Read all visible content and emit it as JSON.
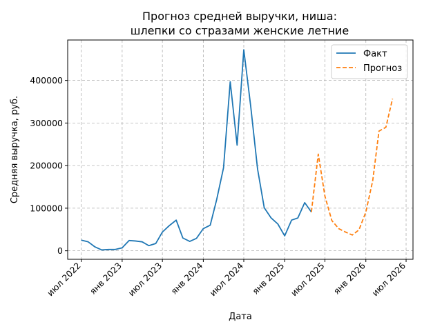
{
  "chart_data": {
    "type": "line",
    "title": [
      "Прогноз средней выручки, ниша:",
      "шлепки со стразами женские летние"
    ],
    "xlabel": "Дата",
    "ylabel": "Средняя выручка, руб.",
    "xlim": [
      "2022-05-01",
      "2026-08-01"
    ],
    "ylim": [
      -20000,
      495000
    ],
    "x_ticks": [
      {
        "date": "2022-07-01",
        "label": "июл 2022"
      },
      {
        "date": "2023-01-01",
        "label": "янв 2023"
      },
      {
        "date": "2023-07-01",
        "label": "июл 2023"
      },
      {
        "date": "2024-01-01",
        "label": "янв 2024"
      },
      {
        "date": "2024-07-01",
        "label": "июл 2024"
      },
      {
        "date": "2025-01-01",
        "label": "янв 2025"
      },
      {
        "date": "2025-07-01",
        "label": "июл 2025"
      },
      {
        "date": "2026-01-01",
        "label": "янв 2026"
      },
      {
        "date": "2026-07-01",
        "label": "июл 2026"
      }
    ],
    "y_ticks": [
      {
        "value": 0,
        "label": "0"
      },
      {
        "value": 100000,
        "label": "100000"
      },
      {
        "value": 200000,
        "label": "200000"
      },
      {
        "value": 300000,
        "label": "300000"
      },
      {
        "value": 400000,
        "label": "400000"
      }
    ],
    "grid": true,
    "legend_position": "top-right",
    "series": [
      {
        "name": "Факт",
        "color": "#1f77b4",
        "style": "solid",
        "x": [
          "2022-07-01",
          "2022-08-01",
          "2022-09-01",
          "2022-10-01",
          "2022-11-01",
          "2022-12-01",
          "2023-01-01",
          "2023-02-01",
          "2023-03-01",
          "2023-04-01",
          "2023-05-01",
          "2023-06-01",
          "2023-07-01",
          "2023-08-01",
          "2023-09-01",
          "2023-10-01",
          "2023-11-01",
          "2023-12-01",
          "2024-01-01",
          "2024-02-01",
          "2024-03-01",
          "2024-04-01",
          "2024-05-01",
          "2024-06-01",
          "2024-07-01",
          "2024-08-01",
          "2024-09-01",
          "2024-10-01",
          "2024-11-01",
          "2024-12-01",
          "2025-01-01",
          "2025-02-01",
          "2025-03-01",
          "2025-04-01",
          "2025-05-01"
        ],
        "y": [
          25000,
          21000,
          9000,
          2000,
          3000,
          3000,
          7000,
          24000,
          23000,
          21000,
          12000,
          17000,
          44000,
          59000,
          72000,
          30000,
          22000,
          29000,
          52000,
          60000,
          120000,
          195000,
          397000,
          248000,
          472000,
          340000,
          192000,
          101000,
          77000,
          63000,
          35000,
          72000,
          77000,
          113000,
          91000
        ]
      },
      {
        "name": "Прогноз",
        "color": "#ff7f0e",
        "style": "dashed",
        "x": [
          "2025-05-01",
          "2025-06-01",
          "2025-07-01",
          "2025-08-01",
          "2025-09-01",
          "2025-10-01",
          "2025-11-01",
          "2025-12-01",
          "2026-01-01",
          "2026-02-01",
          "2026-03-01",
          "2026-04-01",
          "2026-05-01"
        ],
        "y": [
          91000,
          227000,
          128000,
          71000,
          52000,
          44000,
          37000,
          49000,
          91000,
          165000,
          281000,
          290000,
          357000
        ]
      }
    ]
  }
}
